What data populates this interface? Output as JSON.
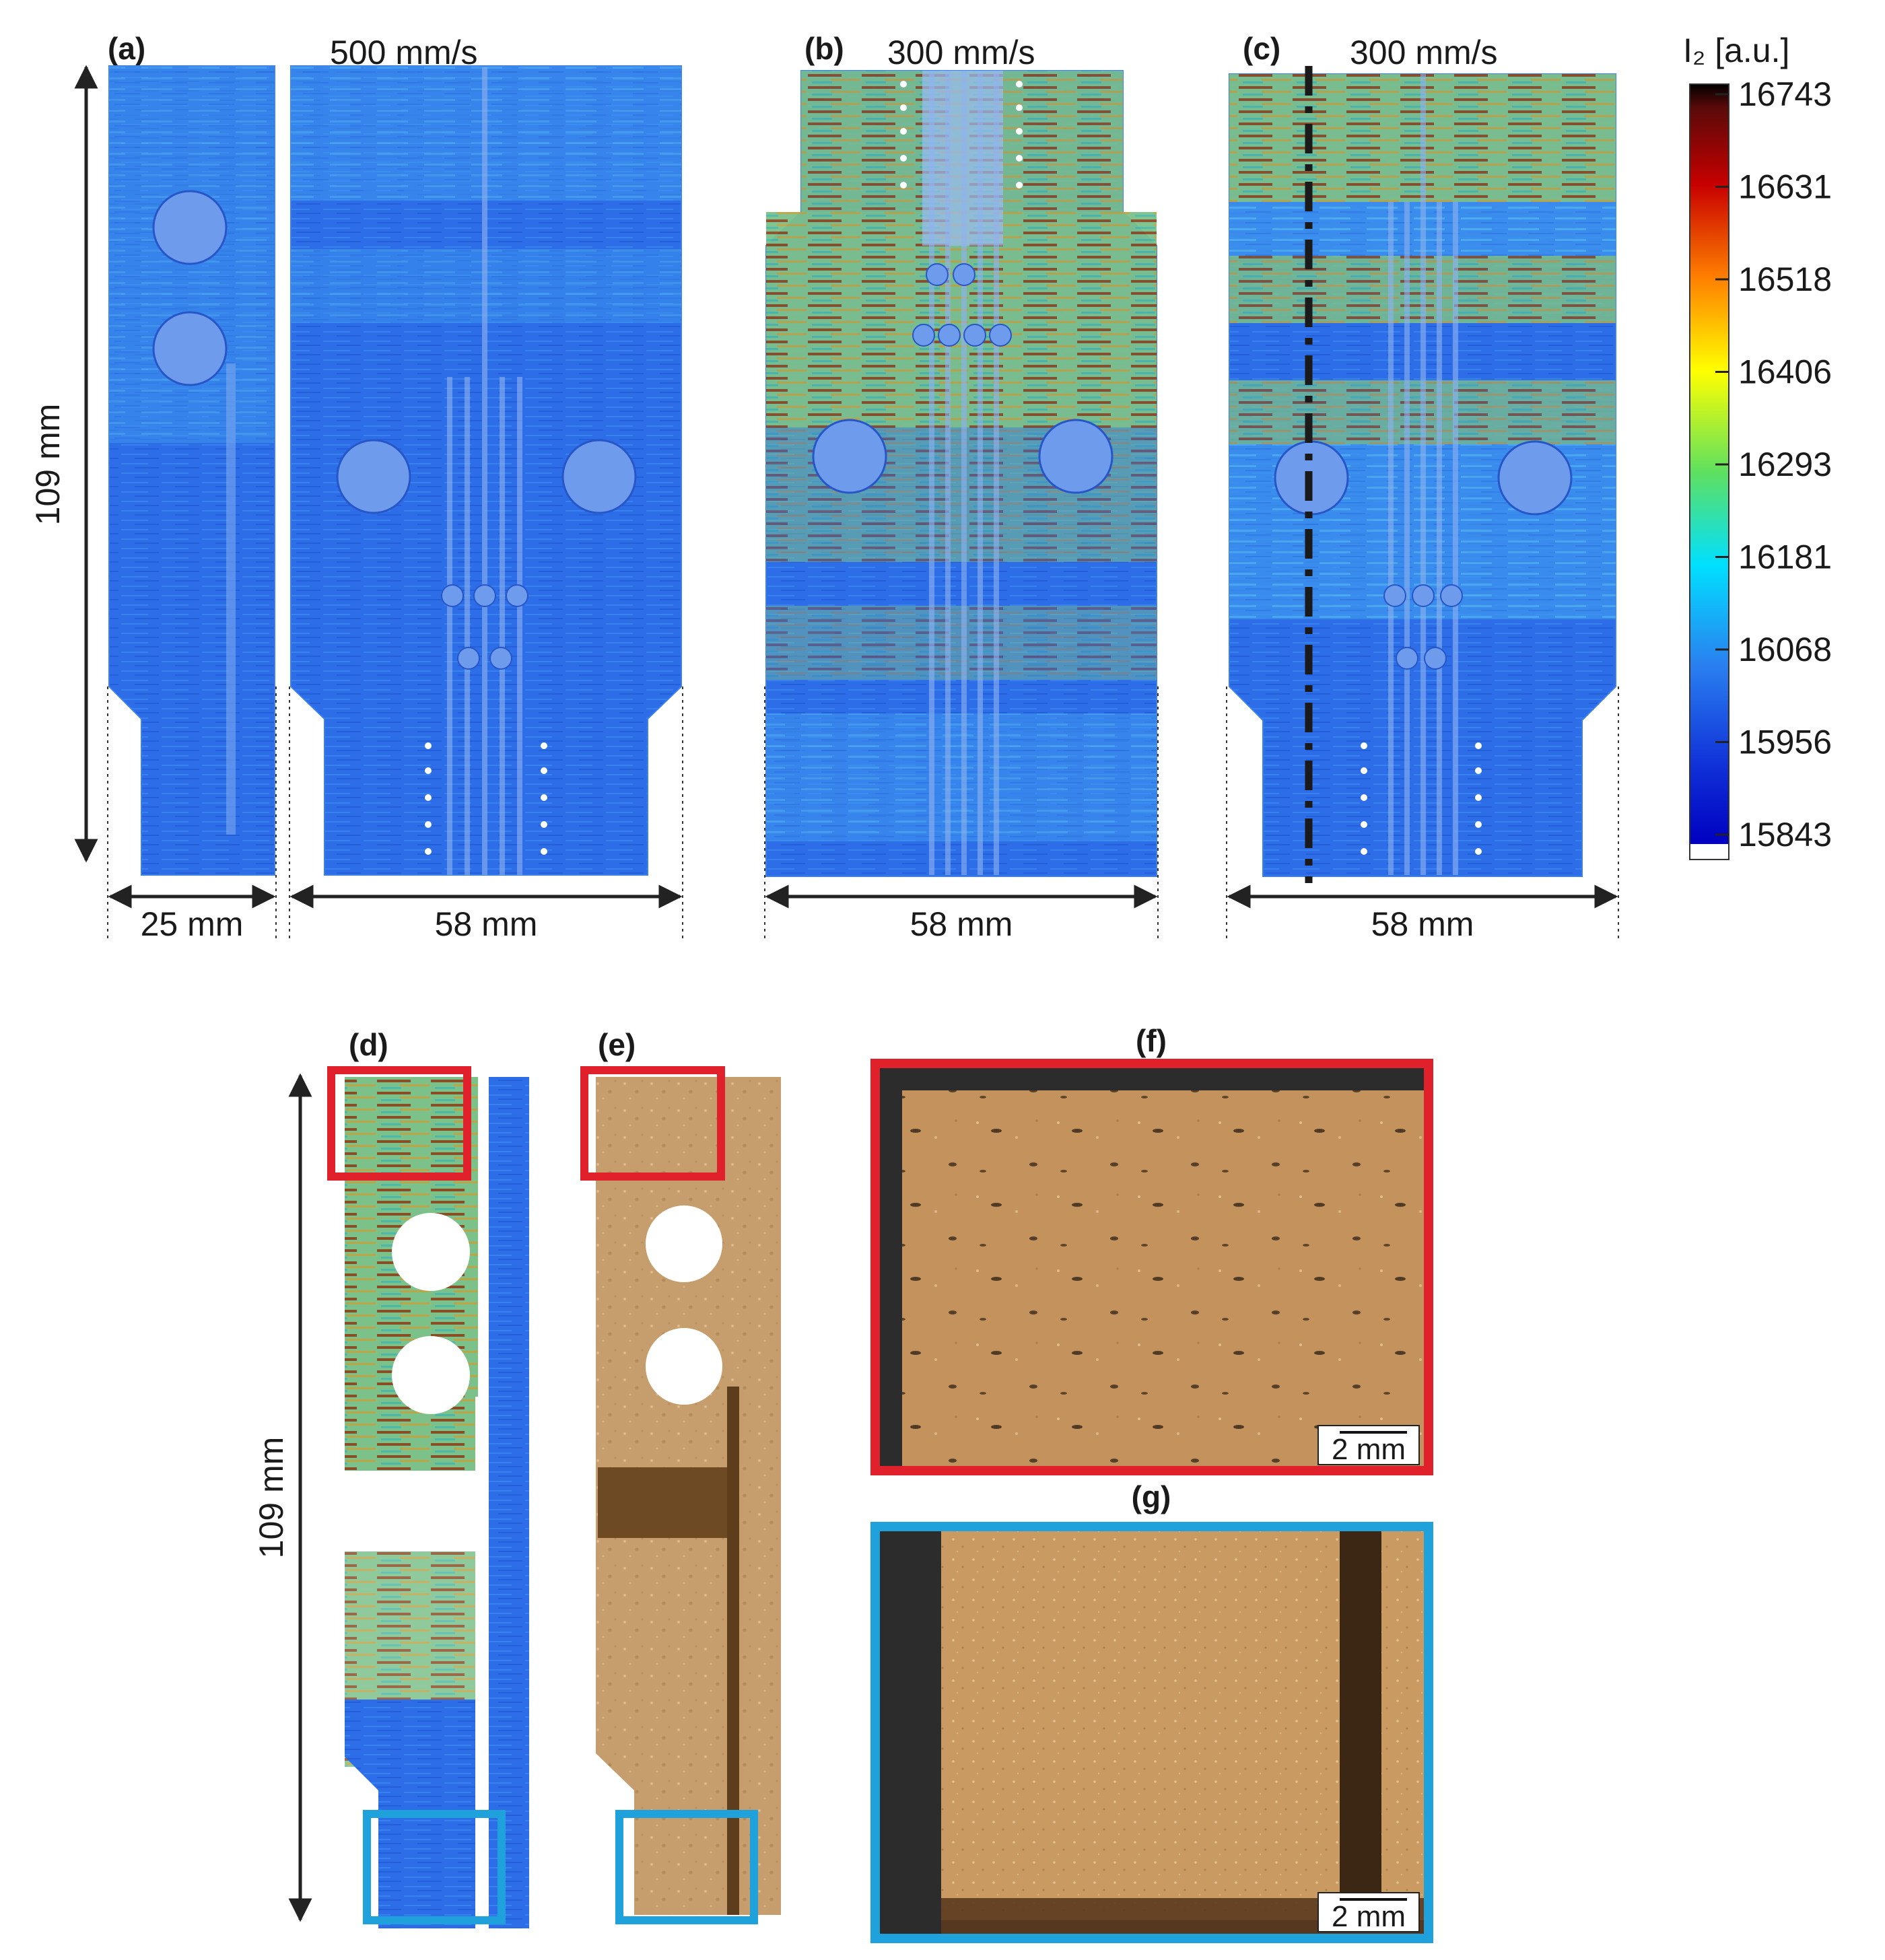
{
  "panels": {
    "a": {
      "label": "(a)",
      "speed": "500 mm/s"
    },
    "b": {
      "label": "(b)",
      "speed": "300 mm/s"
    },
    "c": {
      "label": "(c)",
      "speed": "300 mm/s"
    },
    "d": {
      "label": "(d)"
    },
    "e": {
      "label": "(e)"
    },
    "f": {
      "label": "(f)"
    },
    "g": {
      "label": "(g)"
    }
  },
  "dimensions": {
    "height_top": "109 mm",
    "height_bottom": "109 mm",
    "width_a_small": "25 mm",
    "width_a_large": "58 mm",
    "width_b": "58 mm",
    "width_c": "58 mm"
  },
  "scale_bars": {
    "f": "2 mm",
    "g": "2 mm"
  },
  "colorbar": {
    "title": "I₂ [a.u.]",
    "ticks": [
      "16743",
      "16631",
      "16518",
      "16406",
      "16293",
      "16181",
      "16068",
      "15956",
      "15843"
    ]
  },
  "colors": {
    "highlight_red": "#e0202a",
    "highlight_blue": "#1fa2dc",
    "base_blue": "#2a6fe6",
    "hot_red": "#8b1a10",
    "powder": "#c9a271"
  }
}
